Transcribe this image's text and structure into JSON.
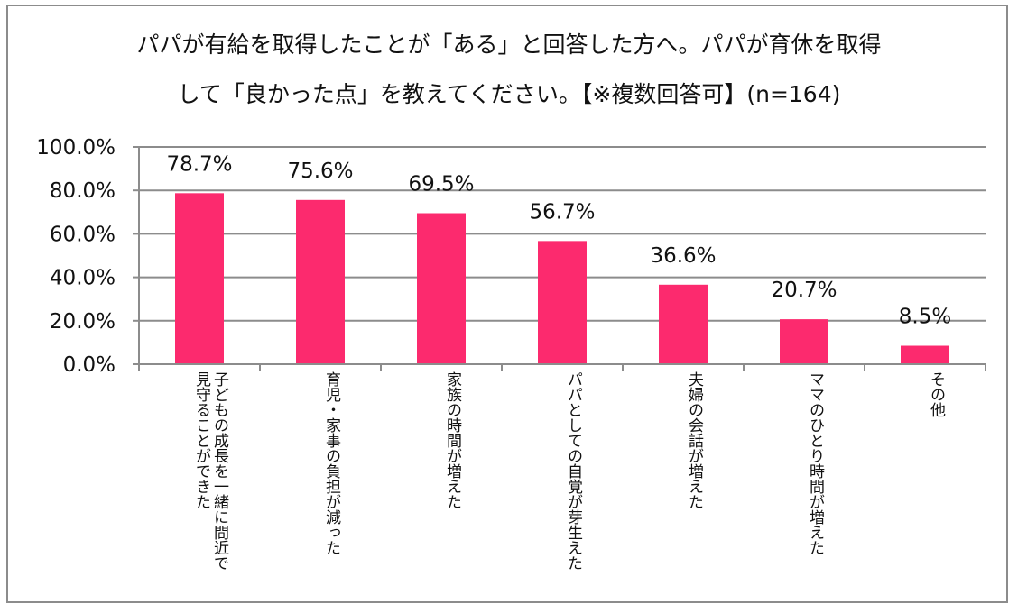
{
  "title": {
    "line1": "パパが有給を取得したことが「ある」と回答した方へ。パパが育休を取得",
    "line2": "して「良かった点」を教えてください。【※複数回答可】(n=164)"
  },
  "colors": {
    "bar": "#fc2a6e",
    "grid": "#8c8c8c",
    "frame": "#8c8c8c"
  },
  "chart_data": {
    "type": "bar",
    "categories": [
      "子どもの成長を一緒に間近で見守ることができた",
      "育児・家事の負担が減った",
      "家族の時間が増えた",
      "パパとしての自覚が芽生えた",
      "夫婦の会話が増えた",
      "ママのひとり時間が増えた",
      "その他"
    ],
    "category_lines": [
      [
        "子どもの成長を一緒に間近で",
        "見守ることができた"
      ],
      [
        "育児・家事の負担が減った"
      ],
      [
        "家族の時間が増えた"
      ],
      [
        "パパとしての自覚が芽生えた"
      ],
      [
        "夫婦の会話が増えた"
      ],
      [
        "ママのひとり時間が増えた"
      ],
      [
        "その他"
      ]
    ],
    "values": [
      78.7,
      75.6,
      69.5,
      56.7,
      36.6,
      20.7,
      8.5
    ],
    "data_labels": [
      "78.7%",
      "75.6%",
      "69.5%",
      "56.7%",
      "36.6%",
      "20.7%",
      "8.5%"
    ],
    "yticks": [
      0,
      20,
      40,
      60,
      80,
      100
    ],
    "ytick_labels": [
      "0.0%",
      "20.0%",
      "40.0%",
      "60.0%",
      "80.0%",
      "100.0%"
    ],
    "ylim": [
      0,
      100
    ],
    "grid": true,
    "legend": "none"
  }
}
